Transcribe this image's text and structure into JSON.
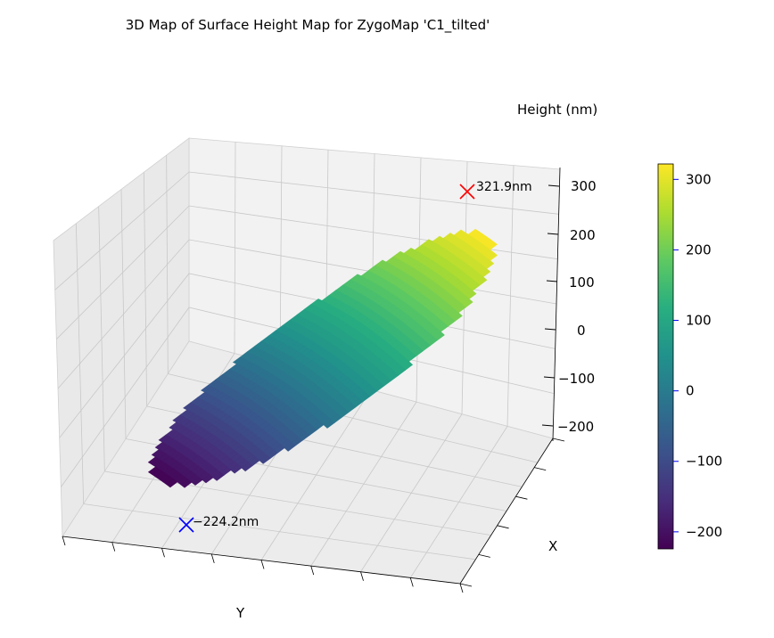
{
  "chart_data": {
    "type": "surface3d",
    "title": "3D Map of Surface Height Map for ZygoMap 'C1_tilted'",
    "xlabel": "X",
    "ylabel": "Y",
    "zlabel": "Height (nm)",
    "zlim": [
      -224.2,
      321.9
    ],
    "z_ticks": [
      300,
      200,
      100,
      0,
      -100,
      -200
    ],
    "colormap": "viridis",
    "colorbar": {
      "ticks": [
        300,
        200,
        100,
        0,
        -100,
        -200
      ],
      "range": [
        -224.2,
        321.9
      ]
    },
    "max_marker": {
      "label": "321.9nm",
      "value": 321.9,
      "color": "#ff0000"
    },
    "min_marker": {
      "label": "-224.2nm",
      "value": -224.2,
      "color": "#0000ff"
    },
    "grid": true
  }
}
